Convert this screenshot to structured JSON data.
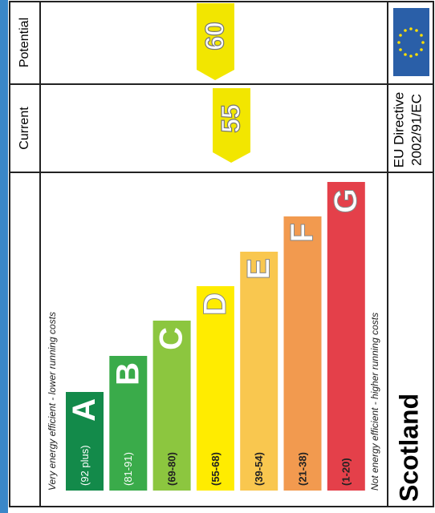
{
  "header": {
    "current": "Current",
    "potential": "Potential"
  },
  "top_note": "Very energy efficient - lower running costs",
  "bottom_note": "Not energy efficient - higher running costs",
  "bands": [
    {
      "letter": "A",
      "range": "(92 plus)"
    },
    {
      "letter": "B",
      "range": "(81-91)"
    },
    {
      "letter": "C",
      "range": "(69-80)"
    },
    {
      "letter": "D",
      "range": "(55-68)"
    },
    {
      "letter": "E",
      "range": "(39-54)"
    },
    {
      "letter": "F",
      "range": "(21-38)"
    },
    {
      "letter": "G",
      "range": "(1-20)"
    }
  ],
  "ratings": {
    "current": 55,
    "potential": 60
  },
  "footer": {
    "region": "Scotland",
    "directive": [
      "EU Directive",
      "2002/91/EC"
    ]
  }
}
